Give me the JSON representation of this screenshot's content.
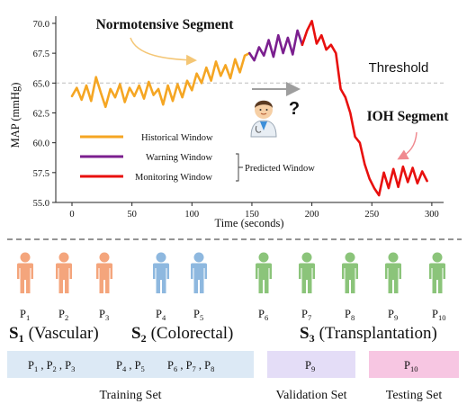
{
  "colors": {
    "historical": "#F5A623",
    "warning": "#7B1F8F",
    "monitoring": "#E8100E",
    "threshold": "#bdbdbd",
    "vascular_person": "#F4A57C",
    "colorectal_person": "#8EB8DF",
    "transplant_person": "#8BC47A",
    "training_box": "#DCE9F5",
    "validation_box": "#E4DDF7",
    "testing_box": "#F7C6E2"
  },
  "chart_data": {
    "type": "line",
    "xlabel": "Time (seconds)",
    "ylabel": "MAP (mmHg)",
    "xlim": [
      -10,
      305
    ],
    "ylim": [
      55,
      70.6
    ],
    "xticks": [
      0,
      50,
      100,
      150,
      200,
      250,
      300
    ],
    "yticks": [
      "55.0",
      "57.5",
      "60.0",
      "62.5",
      "65.0",
      "67.5",
      "70.0"
    ],
    "threshold": 65,
    "series": [
      {
        "key": "historical",
        "name": "Historical Window",
        "x": [
          0,
          4,
          8,
          12,
          16,
          20,
          24,
          28,
          32,
          36,
          40,
          44,
          48,
          52,
          56,
          60,
          64,
          68,
          72,
          76,
          80,
          84,
          88,
          92,
          96,
          100,
          104,
          108,
          112,
          116,
          120,
          124,
          128,
          132,
          136,
          140,
          144,
          148
        ],
        "y": [
          63.9,
          64.6,
          63.6,
          64.8,
          63.5,
          65.5,
          64.2,
          63.0,
          64.5,
          63.8,
          64.9,
          63.4,
          64.6,
          63.9,
          64.8,
          63.7,
          65.1,
          64.0,
          64.5,
          63.2,
          64.8,
          63.5,
          64.9,
          63.8,
          65.2,
          64.4,
          65.8,
          65.0,
          66.3,
          65.2,
          66.8,
          65.6,
          66.5,
          65.4,
          67.0,
          65.9,
          67.3,
          67.5
        ]
      },
      {
        "key": "warning",
        "name": "Warning Window",
        "x": [
          148,
          152,
          156,
          160,
          164,
          168,
          172,
          176,
          180,
          184,
          188,
          192
        ],
        "y": [
          67.5,
          66.9,
          68.0,
          67.3,
          68.6,
          67.2,
          69.0,
          67.5,
          68.8,
          67.4,
          69.4,
          68.2
        ]
      },
      {
        "key": "monitoring",
        "name": "Monitoring Window",
        "x": [
          192,
          196,
          200,
          204,
          208,
          212,
          216,
          220,
          224,
          228,
          232,
          236,
          240,
          244,
          248,
          252,
          256,
          260,
          264,
          268,
          272,
          276,
          280,
          284,
          288,
          292,
          296
        ],
        "y": [
          68.2,
          69.4,
          70.2,
          68.3,
          69.0,
          67.8,
          68.2,
          67.5,
          64.5,
          63.8,
          62.5,
          60.5,
          60.0,
          58.2,
          57.0,
          56.2,
          55.6,
          57.5,
          56.2,
          57.8,
          56.3,
          58.0,
          56.7,
          57.9,
          56.6,
          57.6,
          56.8
        ]
      }
    ],
    "predicted_window_label": "Predicted Window",
    "annotations": {
      "normotensive": "Normotensive Segment",
      "threshold": "Threshold",
      "ioh": "IOH Segment",
      "question": "?"
    }
  },
  "cohorts": {
    "patients": [
      "P",
      "P",
      "P",
      "P",
      "P",
      "P",
      "P",
      "P",
      "P",
      "P"
    ],
    "patient_numbers": [
      "1",
      "2",
      "3",
      "4",
      "5",
      "6",
      "7",
      "8",
      "9",
      "10"
    ],
    "groups": [
      {
        "letter": "S",
        "sub": "1",
        "name": "(Vascular)"
      },
      {
        "letter": "S",
        "sub": "2",
        "name": "(Colorectal)"
      },
      {
        "letter": "S",
        "sub": "3",
        "name": "(Transplantation)"
      }
    ]
  },
  "splits": {
    "training": {
      "label": "Training Set",
      "groups": [
        {
          "items": [
            "1",
            "2",
            "3"
          ]
        },
        {
          "items": [
            "4",
            "5"
          ]
        },
        {
          "items": [
            "6",
            "7",
            "8"
          ]
        }
      ]
    },
    "validation": {
      "label": "Validation Set",
      "items": [
        "9"
      ]
    },
    "testing": {
      "label": "Testing Set",
      "items": [
        "10"
      ]
    }
  }
}
